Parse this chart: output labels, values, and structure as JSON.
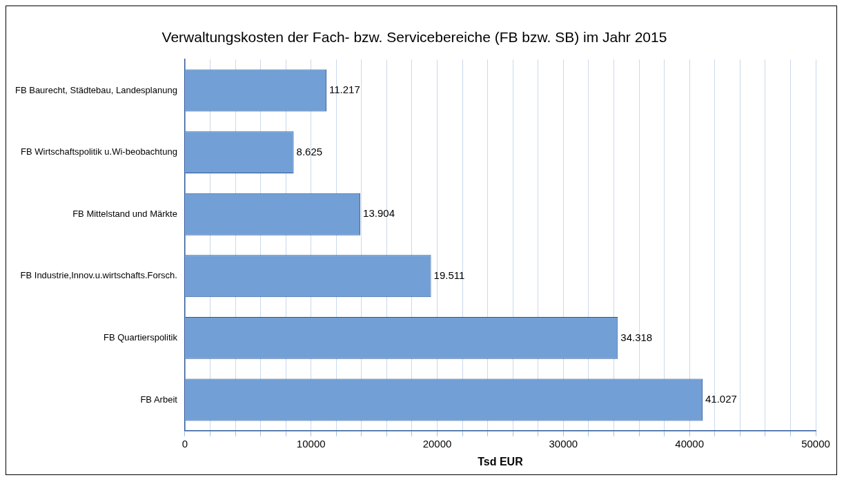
{
  "chart_data": {
    "type": "bar",
    "orientation": "horizontal",
    "title": "Verwaltungskosten der Fach- bzw. Servicebereiche (FB bzw. SB) im Jahr 2015",
    "xlabel": "Tsd EUR",
    "categories": [
      "FB Baurecht, Städtebau, Landesplanung",
      "FB Wirtschaftspolitik u.Wi-beobachtung",
      "FB Mittelstand und Märkte",
      "FB Industrie,Innov.u.wirtschafts.Forsch.",
      "FB Quartierspolitik",
      "FB Arbeit"
    ],
    "values": [
      11217,
      8625,
      13904,
      19511,
      34318,
      41027
    ],
    "value_labels": [
      "11.217",
      "8.625",
      "13.904",
      "19.511",
      "34.318",
      "41.027"
    ],
    "color": "#729fd5",
    "xlim": [
      0,
      50000
    ],
    "xticks": [
      0,
      {
        "value": 2000,
        "label": null
      },
      {
        "value": 4000,
        "label": null
      },
      {
        "value": 6000,
        "label": null
      },
      {
        "value": 8000,
        "label": null
      },
      10000,
      {
        "value": 12000,
        "label": null
      },
      {
        "value": 14000,
        "label": null
      },
      {
        "value": 16000,
        "label": null
      },
      {
        "value": 18000,
        "label": null
      },
      20000,
      {
        "value": 22000,
        "label": null
      },
      {
        "value": 24000,
        "label": null
      },
      {
        "value": 26000,
        "label": null
      },
      {
        "value": 28000,
        "label": null
      },
      30000,
      {
        "value": 32000,
        "label": null
      },
      {
        "value": 34000,
        "label": null
      },
      {
        "value": 36000,
        "label": null
      },
      {
        "value": 38000,
        "label": null
      },
      40000,
      {
        "value": 42000,
        "label": null
      },
      {
        "value": 44000,
        "label": null
      },
      {
        "value": 46000,
        "label": null
      },
      {
        "value": 48000,
        "label": null
      },
      50000
    ],
    "grid": "x",
    "legend": false
  }
}
